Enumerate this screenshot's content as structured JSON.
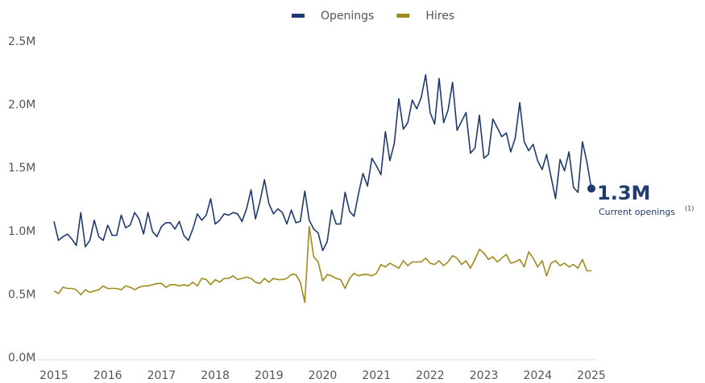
{
  "chart_data": {
    "type": "line",
    "x": [
      0,
      1,
      2,
      3,
      4,
      5,
      6,
      7,
      8,
      9,
      10,
      11,
      12,
      13,
      14,
      15,
      16,
      17,
      18,
      19,
      20,
      21,
      22,
      23,
      24,
      25,
      26,
      27,
      28,
      29,
      30,
      31,
      32,
      33,
      34,
      35,
      36,
      37,
      38,
      39,
      40,
      41,
      42,
      43,
      44,
      45,
      46,
      47,
      48,
      49,
      50,
      51,
      52,
      53,
      54,
      55,
      56,
      57,
      58,
      59,
      60,
      61,
      62,
      63,
      64,
      65,
      66,
      67,
      68,
      69,
      70,
      71,
      72,
      73,
      74,
      75,
      76,
      77,
      78,
      79,
      80,
      81,
      82,
      83,
      84,
      85,
      86,
      87,
      88,
      89,
      90,
      91,
      92,
      93,
      94,
      95,
      96,
      97,
      98,
      99,
      100,
      101,
      102,
      103,
      104,
      105,
      106,
      107,
      108,
      109,
      110,
      111,
      112,
      113,
      114,
      115,
      116,
      117,
      118,
      119,
      120
    ],
    "series": [
      {
        "name": "Openings",
        "color": "#1f3a6e",
        "values": [
          1.08,
          0.93,
          0.96,
          0.98,
          0.94,
          0.89,
          1.15,
          0.88,
          0.93,
          1.09,
          0.96,
          0.93,
          1.05,
          0.97,
          0.97,
          1.13,
          1.03,
          1.05,
          1.15,
          1.1,
          0.98,
          1.15,
          1.0,
          0.96,
          1.04,
          1.07,
          1.07,
          1.02,
          1.08,
          0.97,
          0.93,
          1.02,
          1.14,
          1.09,
          1.13,
          1.26,
          1.06,
          1.09,
          1.14,
          1.13,
          1.15,
          1.14,
          1.08,
          1.18,
          1.33,
          1.1,
          1.24,
          1.41,
          1.22,
          1.14,
          1.18,
          1.15,
          1.06,
          1.17,
          1.07,
          1.08,
          1.32,
          1.09,
          1.02,
          0.99,
          0.85,
          0.92,
          1.17,
          1.06,
          1.06,
          1.31,
          1.16,
          1.12,
          1.3,
          1.46,
          1.36,
          1.58,
          1.52,
          1.45,
          1.79,
          1.56,
          1.7,
          2.05,
          1.81,
          1.86,
          2.04,
          1.97,
          2.06,
          2.24,
          1.94,
          1.85,
          2.21,
          1.86,
          1.96,
          2.18,
          1.8,
          1.87,
          1.94,
          1.62,
          1.66,
          1.92,
          1.58,
          1.61,
          1.89,
          1.82,
          1.75,
          1.78,
          1.63,
          1.74,
          2.02,
          1.71,
          1.64,
          1.69,
          1.56,
          1.49,
          1.61,
          1.43,
          1.26,
          1.57,
          1.48,
          1.63,
          1.35,
          1.31,
          1.71,
          1.55,
          1.34
        ]
      },
      {
        "name": "Hires",
        "color": "#a08a1c",
        "values": [
          0.53,
          0.51,
          0.56,
          0.55,
          0.55,
          0.54,
          0.5,
          0.54,
          0.52,
          0.53,
          0.54,
          0.57,
          0.55,
          0.55,
          0.55,
          0.54,
          0.57,
          0.56,
          0.54,
          0.56,
          0.57,
          0.57,
          0.58,
          0.59,
          0.59,
          0.56,
          0.58,
          0.58,
          0.57,
          0.58,
          0.57,
          0.6,
          0.57,
          0.63,
          0.62,
          0.58,
          0.62,
          0.6,
          0.63,
          0.63,
          0.65,
          0.62,
          0.63,
          0.64,
          0.63,
          0.6,
          0.59,
          0.63,
          0.6,
          0.63,
          0.62,
          0.62,
          0.63,
          0.66,
          0.66,
          0.6,
          0.44,
          1.04,
          0.8,
          0.76,
          0.61,
          0.66,
          0.65,
          0.63,
          0.62,
          0.55,
          0.63,
          0.67,
          0.65,
          0.66,
          0.66,
          0.65,
          0.67,
          0.74,
          0.72,
          0.75,
          0.73,
          0.71,
          0.77,
          0.73,
          0.76,
          0.76,
          0.76,
          0.79,
          0.75,
          0.74,
          0.77,
          0.73,
          0.76,
          0.81,
          0.79,
          0.74,
          0.77,
          0.71,
          0.78,
          0.86,
          0.83,
          0.78,
          0.8,
          0.76,
          0.79,
          0.82,
          0.75,
          0.76,
          0.78,
          0.72,
          0.84,
          0.79,
          0.72,
          0.77,
          0.65,
          0.75,
          0.77,
          0.73,
          0.75,
          0.72,
          0.74,
          0.71,
          0.78,
          0.69,
          0.69
        ]
      }
    ],
    "xlim": [
      0,
      120
    ],
    "xticks": [
      {
        "value": 0,
        "label": "2015"
      },
      {
        "value": 12,
        "label": "2016"
      },
      {
        "value": 24,
        "label": "2017"
      },
      {
        "value": 36,
        "label": "2018"
      },
      {
        "value": 48,
        "label": "2019"
      },
      {
        "value": 60,
        "label": "2020"
      },
      {
        "value": 72,
        "label": "2021"
      },
      {
        "value": 84,
        "label": "2022"
      },
      {
        "value": 96,
        "label": "2023"
      },
      {
        "value": 108,
        "label": "2024"
      },
      {
        "value": 120,
        "label": "2025"
      }
    ],
    "ylim": [
      0,
      2.5
    ],
    "yticks": [
      {
        "value": 0,
        "label": "0.0M"
      },
      {
        "value": 0.5,
        "label": "0.5M"
      },
      {
        "value": 1.0,
        "label": "1.0M"
      },
      {
        "value": 1.5,
        "label": "1.5M"
      },
      {
        "value": 2.0,
        "label": "2.0M"
      },
      {
        "value": 2.5,
        "label": "2.5M"
      }
    ],
    "grid": false,
    "legend": "top",
    "annotation": {
      "label": "1.3M",
      "text": "Current openings",
      "note": "(1)"
    }
  }
}
